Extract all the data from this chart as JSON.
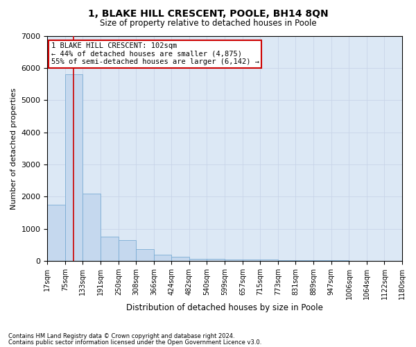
{
  "title": "1, BLAKE HILL CRESCENT, POOLE, BH14 8QN",
  "subtitle": "Size of property relative to detached houses in Poole",
  "xlabel": "Distribution of detached houses by size in Poole",
  "ylabel": "Number of detached properties",
  "bar_color": "#c5d8ee",
  "bar_edge_color": "#7aacd4",
  "grid_color": "#c8d4e8",
  "background_color": "#dce8f5",
  "vline_color": "#cc0000",
  "vline_x": 102,
  "annotation_line1": "1 BLAKE HILL CRESCENT: 102sqm",
  "annotation_line2": "← 44% of detached houses are smaller (4,875)",
  "annotation_line3": "55% of semi-detached houses are larger (6,142) →",
  "annotation_box_color": "#ffffff",
  "annotation_box_edge_color": "#cc0000",
  "footnote1": "Contains HM Land Registry data © Crown copyright and database right 2024.",
  "footnote2": "Contains public sector information licensed under the Open Government Licence v3.0.",
  "bin_edges": [
    17,
    75,
    133,
    191,
    250,
    308,
    366,
    424,
    482,
    540,
    599,
    657,
    715,
    773,
    831,
    889,
    947,
    1006,
    1064,
    1122,
    1180
  ],
  "bar_heights": [
    1750,
    5800,
    2100,
    750,
    650,
    380,
    200,
    130,
    80,
    60,
    50,
    45,
    40,
    35,
    28,
    22,
    18,
    12,
    8,
    5
  ],
  "ylim": [
    0,
    7000
  ],
  "yticks": [
    0,
    1000,
    2000,
    3000,
    4000,
    5000,
    6000,
    7000
  ]
}
